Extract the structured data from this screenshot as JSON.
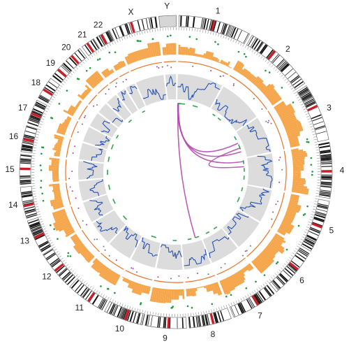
{
  "figure": {
    "chromosomes": [
      {
        "label": "1",
        "length": 249
      },
      {
        "label": "2",
        "length": 243
      },
      {
        "label": "3",
        "length": 198
      },
      {
        "label": "4",
        "length": 191
      },
      {
        "label": "5",
        "length": 181
      },
      {
        "label": "6",
        "length": 171
      },
      {
        "label": "7",
        "length": 159
      },
      {
        "label": "8",
        "length": 146
      },
      {
        "label": "9",
        "length": 141
      },
      {
        "label": "10",
        "length": 136
      },
      {
        "label": "11",
        "length": 135
      },
      {
        "label": "12",
        "length": 133
      },
      {
        "label": "13",
        "length": 115
      },
      {
        "label": "14",
        "length": 107
      },
      {
        "label": "15",
        "length": 102
      },
      {
        "label": "16",
        "length": 90
      },
      {
        "label": "17",
        "length": 83
      },
      {
        "label": "18",
        "length": 78
      },
      {
        "label": "19",
        "length": 59
      },
      {
        "label": "20",
        "length": 63
      },
      {
        "label": "21",
        "length": 48
      },
      {
        "label": "22",
        "length": 51
      },
      {
        "label": "X",
        "length": 155
      },
      {
        "label": "Y",
        "length": 59
      }
    ],
    "colors": {
      "ideogram_band": "#111111",
      "centromere": "#c8202a",
      "copy_number_bars": "#f5a54a",
      "copy_number_line": "#e8732a",
      "green_dots": "#1f9a3a",
      "magenta_dots": "#b03ab8",
      "gray_band": "#dcdcdc",
      "blue_profile": "#2451b5",
      "green_links": "#1f9a3a",
      "magenta_links": "#b24cb0"
    },
    "links": [
      {
        "from": {
          "chr": "1",
          "pos": 5
        },
        "to": {
          "chr": "3",
          "pos": 80
        },
        "color": "magenta"
      },
      {
        "from": {
          "chr": "1",
          "pos": 10
        },
        "to": {
          "chr": "3",
          "pos": 150
        },
        "color": "magenta"
      },
      {
        "from": {
          "chr": "1",
          "pos": 8
        },
        "to": {
          "chr": "4",
          "pos": 20
        },
        "color": "magenta"
      },
      {
        "from": {
          "chr": "1",
          "pos": 6
        },
        "to": {
          "chr": "8",
          "pos": 40
        },
        "color": "magenta"
      },
      {
        "from": {
          "chr": "3",
          "pos": 120
        },
        "to": {
          "chr": "4",
          "pos": 60
        },
        "color": "magenta"
      },
      {
        "from": {
          "chr": "1",
          "pos": 3
        },
        "to": {
          "chr": "1",
          "pos": 30
        },
        "color": "green"
      },
      {
        "from": {
          "chr": "1",
          "pos": 4
        },
        "to": {
          "chr": "1",
          "pos": 60
        },
        "color": "green"
      },
      {
        "from": {
          "chr": "1",
          "pos": 120
        },
        "to": {
          "chr": "1",
          "pos": 160
        },
        "color": "green"
      },
      {
        "from": {
          "chr": "2",
          "pos": 30
        },
        "to": {
          "chr": "2",
          "pos": 55
        },
        "color": "green"
      },
      {
        "from": {
          "chr": "2",
          "pos": 80
        },
        "to": {
          "chr": "2",
          "pos": 110
        },
        "color": "green"
      },
      {
        "from": {
          "chr": "3",
          "pos": 20
        },
        "to": {
          "chr": "3",
          "pos": 50
        },
        "color": "green"
      },
      {
        "from": {
          "chr": "3",
          "pos": 90
        },
        "to": {
          "chr": "3",
          "pos": 130
        },
        "color": "green"
      },
      {
        "from": {
          "chr": "4",
          "pos": 10
        },
        "to": {
          "chr": "4",
          "pos": 40
        },
        "color": "green"
      },
      {
        "from": {
          "chr": "4",
          "pos": 70
        },
        "to": {
          "chr": "4",
          "pos": 100
        },
        "color": "green"
      },
      {
        "from": {
          "chr": "4",
          "pos": 130
        },
        "to": {
          "chr": "4",
          "pos": 160
        },
        "color": "green"
      },
      {
        "from": {
          "chr": "5",
          "pos": 20
        },
        "to": {
          "chr": "5",
          "pos": 50
        },
        "color": "green"
      },
      {
        "from": {
          "chr": "5",
          "pos": 100
        },
        "to": {
          "chr": "5",
          "pos": 140
        },
        "color": "green"
      },
      {
        "from": {
          "chr": "7",
          "pos": 20
        },
        "to": {
          "chr": "7",
          "pos": 50
        },
        "color": "green"
      },
      {
        "from": {
          "chr": "7",
          "pos": 90
        },
        "to": {
          "chr": "7",
          "pos": 120
        },
        "color": "green"
      },
      {
        "from": {
          "chr": "8",
          "pos": 10
        },
        "to": {
          "chr": "8",
          "pos": 40
        },
        "color": "green"
      },
      {
        "from": {
          "chr": "8",
          "pos": 70
        },
        "to": {
          "chr": "8",
          "pos": 100
        },
        "color": "green"
      },
      {
        "from": {
          "chr": "9",
          "pos": 30
        },
        "to": {
          "chr": "9",
          "pos": 60
        },
        "color": "green"
      },
      {
        "from": {
          "chr": "10",
          "pos": 40
        },
        "to": {
          "chr": "10",
          "pos": 80
        },
        "color": "green"
      },
      {
        "from": {
          "chr": "12",
          "pos": 20
        },
        "to": {
          "chr": "12",
          "pos": 60
        },
        "color": "green"
      },
      {
        "from": {
          "chr": "13",
          "pos": 30
        },
        "to": {
          "chr": "13",
          "pos": 70
        },
        "color": "green"
      },
      {
        "from": {
          "chr": "14",
          "pos": 20
        },
        "to": {
          "chr": "14",
          "pos": 60
        },
        "color": "green"
      },
      {
        "from": {
          "chr": "15",
          "pos": 20
        },
        "to": {
          "chr": "15",
          "pos": 60
        },
        "color": "green"
      },
      {
        "from": {
          "chr": "16",
          "pos": 10
        },
        "to": {
          "chr": "16",
          "pos": 50
        },
        "color": "green"
      },
      {
        "from": {
          "chr": "17",
          "pos": 10
        },
        "to": {
          "chr": "17",
          "pos": 50
        },
        "color": "green"
      },
      {
        "from": {
          "chr": "18",
          "pos": 10
        },
        "to": {
          "chr": "18",
          "pos": 40
        },
        "color": "green"
      },
      {
        "from": {
          "chr": "20",
          "pos": 10
        },
        "to": {
          "chr": "20",
          "pos": 40
        },
        "color": "green"
      },
      {
        "from": {
          "chr": "22",
          "pos": 10
        },
        "to": {
          "chr": "22",
          "pos": 35
        },
        "color": "green"
      }
    ]
  }
}
